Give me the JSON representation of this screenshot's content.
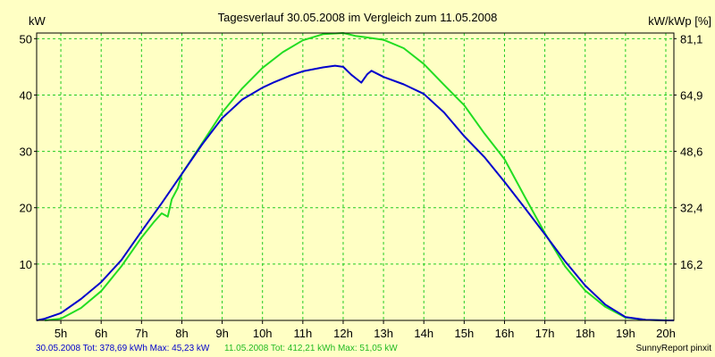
{
  "chart_data": {
    "type": "line",
    "title": "Tagesverlauf 30.05.2008 im Vergleich zum 11.05.2008",
    "ylabel_left": "kW",
    "ylabel_right": "kW/kWp [%]",
    "xlim": [
      4.4,
      20.2
    ],
    "ylim": [
      0,
      51
    ],
    "x_ticks": [
      5,
      6,
      7,
      8,
      9,
      10,
      11,
      12,
      13,
      14,
      15,
      16,
      17,
      18,
      19,
      20
    ],
    "x_tick_labels": [
      "5h",
      "6h",
      "7h",
      "8h",
      "9h",
      "10h",
      "11h",
      "12h",
      "13h",
      "14h",
      "15h",
      "16h",
      "17h",
      "18h",
      "19h",
      "20h"
    ],
    "y_ticks_left": [
      10,
      20,
      30,
      40,
      50
    ],
    "y_tick_labels_left": [
      "10",
      "20",
      "30",
      "40",
      "50"
    ],
    "y_ticks_right_values": [
      10,
      20,
      30,
      40,
      50
    ],
    "y_tick_labels_right": [
      "16,2",
      "32,4",
      "48,6",
      "64,9",
      "81,1"
    ],
    "grid": true,
    "colors": {
      "background": "#ffffc4",
      "series_30_05": "#0000cc",
      "series_11_05": "#22dd22",
      "grid": "#22cc22",
      "axis": "#000000"
    },
    "series": [
      {
        "name": "30.05.2008",
        "color": "#0000cc",
        "x": [
          4.4,
          4.6,
          5.0,
          5.5,
          6.0,
          6.5,
          7.0,
          7.5,
          8.0,
          8.5,
          9.0,
          9.5,
          10.0,
          10.3,
          10.7,
          11.0,
          11.5,
          11.8,
          12.0,
          12.2,
          12.45,
          12.6,
          12.7,
          13.0,
          13.5,
          14.0,
          14.5,
          15.0,
          15.5,
          16.0,
          16.5,
          17.0,
          17.5,
          18.0,
          18.5,
          19.0,
          19.5,
          20.0,
          20.2
        ],
        "y": [
          0,
          0.3,
          1.3,
          3.8,
          6.8,
          10.7,
          15.8,
          20.8,
          26.0,
          31.2,
          35.9,
          39.2,
          41.3,
          42.3,
          43.5,
          44.2,
          44.9,
          45.2,
          45.0,
          43.6,
          42.2,
          43.7,
          44.3,
          43.2,
          41.9,
          40.2,
          36.9,
          32.7,
          29.0,
          24.6,
          20.0,
          15.3,
          10.5,
          6.2,
          2.8,
          0.6,
          0.1,
          0,
          0
        ]
      },
      {
        "name": "11.05.2008",
        "color": "#22dd22",
        "x": [
          4.6,
          5.0,
          5.5,
          6.0,
          6.5,
          7.0,
          7.3,
          7.5,
          7.65,
          7.75,
          7.9,
          8.0,
          8.5,
          9.0,
          9.5,
          10.0,
          10.5,
          11.0,
          11.5,
          12.0,
          12.3,
          12.5,
          13.0,
          13.5,
          14.0,
          14.5,
          15.0,
          15.5,
          16.0,
          16.5,
          17.0,
          17.5,
          18.0,
          18.5,
          19.0,
          19.5,
          20.0,
          20.1
        ],
        "y": [
          0,
          0.3,
          2.2,
          5.2,
          9.6,
          14.7,
          17.4,
          19.0,
          18.4,
          21.5,
          23.5,
          26.0,
          31.4,
          36.9,
          41.2,
          44.8,
          47.6,
          49.7,
          50.8,
          51.0,
          50.5,
          50.3,
          49.8,
          48.3,
          45.5,
          41.8,
          38.2,
          33.2,
          28.6,
          22.0,
          15.5,
          9.6,
          5.3,
          2.4,
          0.5,
          0.1,
          0,
          0
        ]
      }
    ]
  },
  "footer": {
    "series_a_summary": "30.05.2008 Tot: 378,69 kWh Max: 45,23 kW",
    "series_b_summary": "11.05.2008 Tot: 412,21 kWh Max: 51,05 kW",
    "credit": "SunnyReport pinxit"
  }
}
